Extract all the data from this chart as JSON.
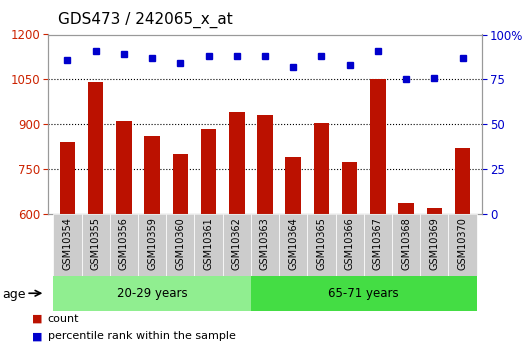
{
  "title": "GDS473 / 242065_x_at",
  "samples": [
    "GSM10354",
    "GSM10355",
    "GSM10356",
    "GSM10359",
    "GSM10360",
    "GSM10361",
    "GSM10362",
    "GSM10363",
    "GSM10364",
    "GSM10365",
    "GSM10366",
    "GSM10367",
    "GSM10368",
    "GSM10369",
    "GSM10370"
  ],
  "counts": [
    840,
    1040,
    910,
    860,
    800,
    885,
    940,
    930,
    790,
    905,
    775,
    1050,
    635,
    620,
    820
  ],
  "percentiles": [
    86,
    91,
    89,
    87,
    84,
    88,
    88,
    83,
    91,
    75,
    76,
    87
  ],
  "percentiles_all": [
    86,
    91,
    89,
    87,
    84,
    88,
    88,
    88,
    82,
    88,
    83,
    91,
    75,
    76,
    87
  ],
  "groups": [
    {
      "label": "20-29 years",
      "start": 0,
      "end": 7,
      "color": "#90EE90"
    },
    {
      "label": "65-71 years",
      "start": 7,
      "end": 15,
      "color": "#44DD44"
    }
  ],
  "ylim_left": [
    600,
    1200
  ],
  "ylim_right": [
    0,
    100
  ],
  "yticks_left": [
    600,
    750,
    900,
    1050,
    1200
  ],
  "yticks_right": [
    0,
    25,
    50,
    75,
    100
  ],
  "bar_color": "#BB1100",
  "dot_color": "#0000CC",
  "grid_color": "#000000",
  "bg_color": "#FFFFFF",
  "tick_label_color_left": "#CC2200",
  "tick_label_color_right": "#0000CC",
  "age_label": "age",
  "legend_count": "count",
  "legend_percentile": "percentile rank within the sample",
  "title_fontsize": 11,
  "axis_fontsize": 8.5,
  "bar_width": 0.55,
  "group1_boundary": 7
}
